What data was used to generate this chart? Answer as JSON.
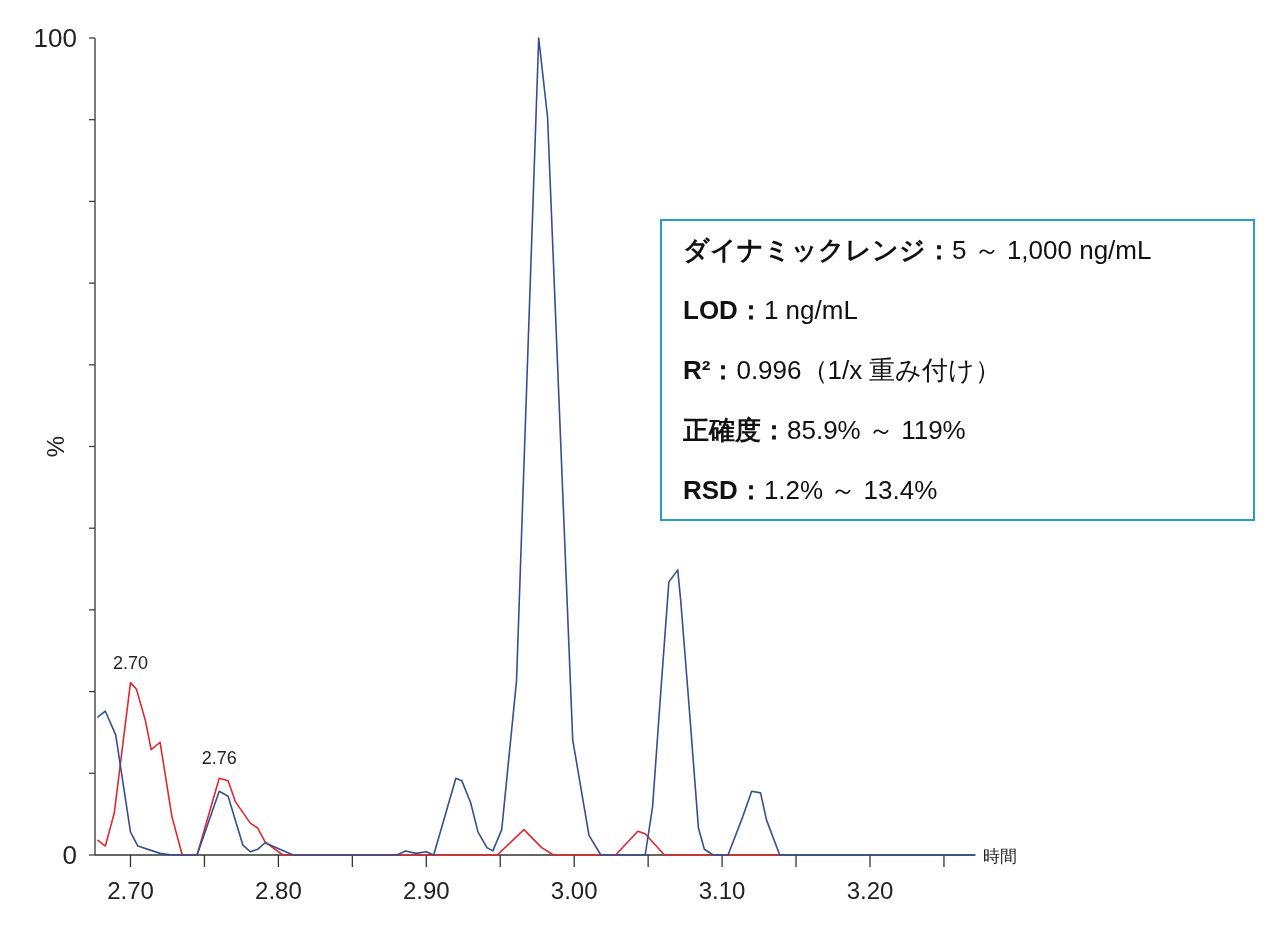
{
  "chart_data": {
    "type": "line",
    "xlabel": "時間",
    "ylabel": "%",
    "xlim": [
      2.676,
      3.271
    ],
    "ylim": [
      0,
      100
    ],
    "xticks": [
      {
        "value": 2.7,
        "label": "2.70"
      },
      {
        "value": 2.75,
        "label": null
      },
      {
        "value": 2.8,
        "label": "2.80"
      },
      {
        "value": 2.85,
        "label": null
      },
      {
        "value": 2.9,
        "label": "2.90"
      },
      {
        "value": 2.95,
        "label": null
      },
      {
        "value": 3.0,
        "label": "3.00"
      },
      {
        "value": 3.05,
        "label": null
      },
      {
        "value": 3.1,
        "label": "3.10"
      },
      {
        "value": 3.15,
        "label": null
      },
      {
        "value": 3.2,
        "label": "3.20"
      },
      {
        "value": 3.25,
        "label": null
      }
    ],
    "yticks": [
      0,
      {
        "value": 10,
        "label": null
      },
      {
        "value": 20,
        "label": null
      },
      {
        "value": 30,
        "label": null
      },
      {
        "value": 40,
        "label": null
      },
      {
        "value": 50,
        "label": null
      },
      {
        "value": 60,
        "label": null
      },
      {
        "value": 70,
        "label": null
      },
      {
        "value": 80,
        "label": null
      },
      {
        "value": 90,
        "label": null
      },
      100
    ],
    "series": [
      {
        "color": "#e0282e",
        "x": [
          2.678,
          2.683,
          2.689,
          2.7,
          2.704,
          2.71,
          2.714,
          2.72,
          2.728,
          2.735,
          2.745,
          2.76,
          2.766,
          2.771,
          2.781,
          2.786,
          2.791,
          2.803,
          2.948,
          2.966,
          2.978,
          2.986,
          3.028,
          3.043,
          3.048,
          3.061,
          3.139
        ],
        "values": [
          1.8,
          1.1,
          5.1,
          21.1,
          20.3,
          16.5,
          12.9,
          13.8,
          4.7,
          0,
          0,
          9.4,
          9.1,
          6.5,
          3.9,
          3.3,
          1.6,
          0,
          0,
          3.1,
          0.9,
          0,
          0,
          2.9,
          2.6,
          0,
          0
        ]
      },
      {
        "color": "#34508f",
        "x": [
          2.678,
          2.683,
          2.69,
          2.7,
          2.705,
          2.72,
          2.728,
          2.745,
          2.76,
          2.766,
          2.776,
          2.781,
          2.786,
          2.791,
          2.801,
          2.81,
          2.88,
          2.886,
          2.893,
          2.9,
          2.905,
          2.92,
          2.924,
          2.93,
          2.935,
          2.941,
          2.945,
          2.951,
          2.961,
          2.976,
          2.982,
          2.999,
          3.01,
          3.018,
          3.048,
          3.053,
          3.058,
          3.064,
          3.07,
          3.072,
          3.077,
          3.084,
          3.088,
          3.094,
          3.104,
          3.114,
          3.12,
          3.126,
          3.13,
          3.139,
          3.271
        ],
        "values": [
          16.9,
          17.6,
          14.7,
          2.8,
          1.1,
          0.2,
          0,
          0,
          7.8,
          7.2,
          1.2,
          0.4,
          0.7,
          1.5,
          0.7,
          0,
          0,
          0.5,
          0.2,
          0.4,
          0,
          9.4,
          9.1,
          6.4,
          2.8,
          0.9,
          0.5,
          3.1,
          21.3,
          100,
          90.3,
          14.1,
          2.4,
          0,
          0,
          5.9,
          18.6,
          33.4,
          34.9,
          31.2,
          19.8,
          3.3,
          0.7,
          0,
          0,
          4.7,
          7.8,
          7.6,
          4.3,
          0,
          0
        ]
      }
    ],
    "annotations": [
      {
        "text": "2.70",
        "x": 2.7,
        "y": 21.1
      },
      {
        "text": "2.76",
        "x": 2.76,
        "y": 9.4
      },
      "ダイナミックレンジ：5 ～ 1,000 ng/mL",
      "LOD：1 ng/mL",
      "R²：0.996（1/x 重み付け）",
      "正確度：85.9% ～ 119%",
      "RSD：1.2% ～ 13.4%"
    ]
  }
}
